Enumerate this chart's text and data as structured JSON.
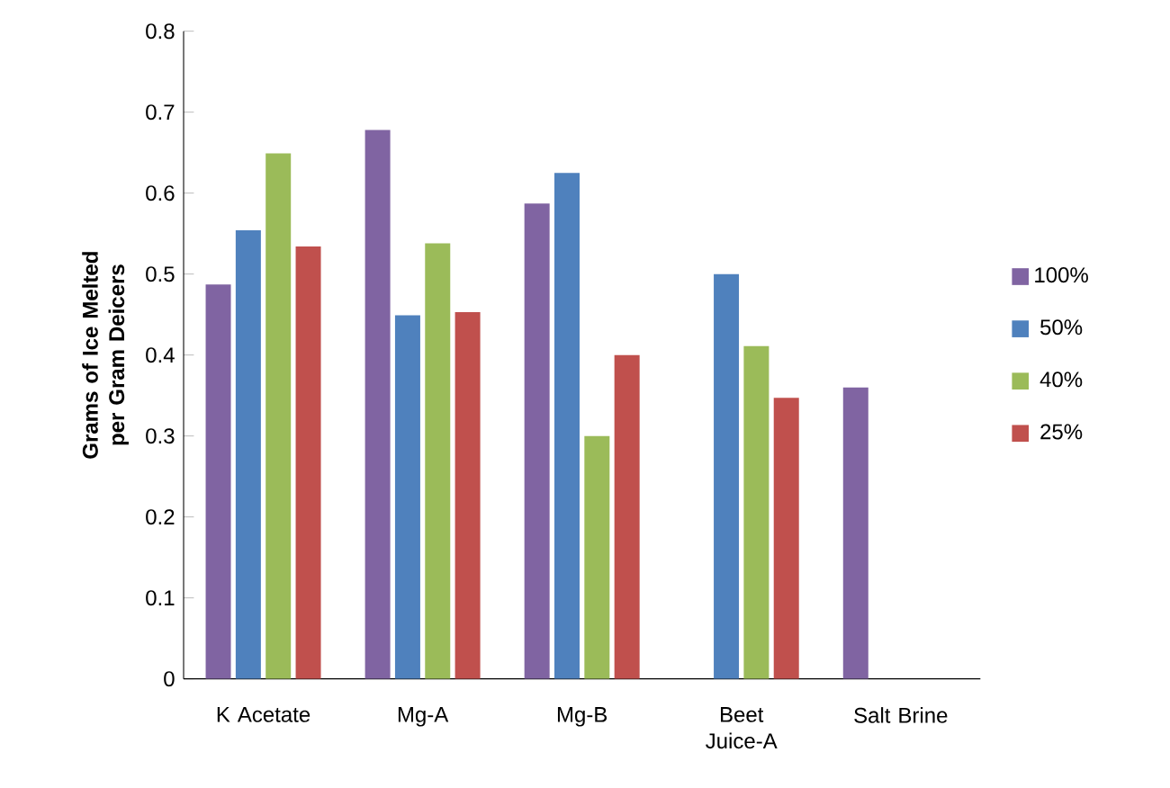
{
  "chart_data": {
    "type": "bar",
    "ylabel": "Grams of Ice Melted per Gram Deicers",
    "categories": [
      "K Acetate",
      "Mg-A",
      "Mg-B",
      "Beet Juice-A",
      "Salt Brine"
    ],
    "series": [
      {
        "name": "100%",
        "color": "#8064a2",
        "values": [
          0.487,
          0.678,
          0.587,
          null,
          0.36
        ]
      },
      {
        "name": "50%",
        "color": "#4f81bd",
        "values": [
          0.554,
          0.449,
          0.625,
          0.5,
          null
        ]
      },
      {
        "name": "40%",
        "color": "#9bbb59",
        "values": [
          0.649,
          0.538,
          0.3,
          0.411,
          null
        ]
      },
      {
        "name": "25%",
        "color": "#c0504d",
        "values": [
          0.534,
          0.453,
          0.4,
          0.347,
          null
        ]
      }
    ],
    "ylim": [
      0,
      0.8
    ],
    "yticks": [
      0,
      0.1,
      0.2,
      0.3,
      0.4,
      0.5,
      0.6,
      0.7,
      0.8
    ],
    "grid": false,
    "legend": "right"
  }
}
